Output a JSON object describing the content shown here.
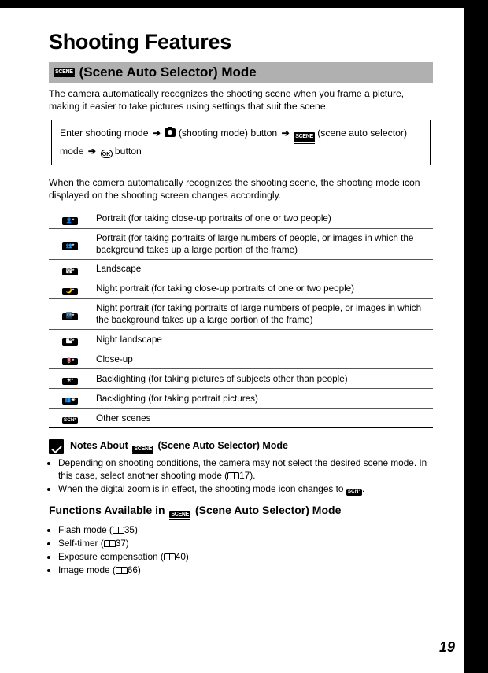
{
  "chapter_title": "Shooting Features",
  "mode_header": "(Scene Auto Selector) Mode",
  "intro": "The camera automatically recognizes the shooting scene when you frame a picture, making it easier to take pictures using settings that suit the scene.",
  "navbox": {
    "p1": "Enter shooting mode",
    "p2": "(shooting mode) button",
    "p3": "(scene auto selector) mode",
    "p4": "button"
  },
  "para2": "When the camera automatically recognizes the shooting scene, the shooting mode icon displayed on the shooting screen changes accordingly.",
  "table": {
    "rows": [
      {
        "icon": "👤*",
        "desc": "Portrait (for taking close-up portraits of one or two people)"
      },
      {
        "icon": "👥*",
        "desc": "Portrait (for taking portraits of large numbers of people, or images in which the background takes up a large portion of the frame)"
      },
      {
        "icon": "🏞*",
        "desc": "Landscape"
      },
      {
        "icon": "🌙*",
        "desc": "Night portrait (for taking close-up portraits of one or two people)"
      },
      {
        "icon": "🌃*",
        "desc": "Night portrait (for taking portraits of large numbers of people, or images in which the background takes up a large portion of the frame)"
      },
      {
        "icon": "🏙*",
        "desc": "Night landscape"
      },
      {
        "icon": "🌷*",
        "desc": "Close-up"
      },
      {
        "icon": "☀*",
        "desc": "Backlighting (for taking pictures of subjects other than people)"
      },
      {
        "icon": "👥☀",
        "desc": "Backlighting (for taking portrait pictures)"
      },
      {
        "icon": "SCN*",
        "desc": "Other scenes"
      }
    ]
  },
  "notes_title": "Notes About",
  "notes_title_suffix": "(Scene Auto Selector) Mode",
  "notes": [
    {
      "t": "Depending on shooting conditions, the camera may not select the desired scene mode. In this case, select another shooting mode (",
      "ref": "17",
      "tail": ")."
    },
    {
      "t": "When the digital zoom is in effect, the shooting mode icon changes to ",
      "ref": "",
      "tail": "."
    }
  ],
  "sub_hd_pre": "Functions Available in",
  "sub_hd_post": "(Scene Auto Selector) Mode",
  "funcs": [
    {
      "label": "Flash mode (",
      "ref": "35",
      "tail": ")"
    },
    {
      "label": "Self-timer (",
      "ref": "37",
      "tail": ")"
    },
    {
      "label": "Exposure compensation (",
      "ref": "40",
      "tail": ")"
    },
    {
      "label": "Image mode (",
      "ref": "66",
      "tail": ")"
    }
  ],
  "side_label": "Shooting Features",
  "page_number": "19"
}
